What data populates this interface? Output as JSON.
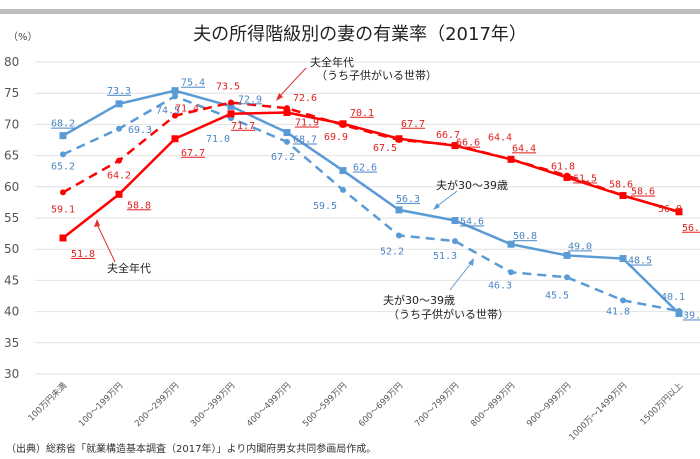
{
  "chart_data": {
    "type": "line",
    "title": "夫の所得階級別の妻の有業率（2017年）",
    "ylabel": "（%）",
    "source": "（出典）総務省「就業構造基本調査（2017年）」より内閣府男女共同参画局作成。",
    "ylim": [
      30,
      80
    ],
    "yticks": [
      30,
      35,
      40,
      45,
      50,
      55,
      60,
      65,
      70,
      75,
      80
    ],
    "grid": true,
    "categories": [
      "100万円未満",
      "100～199万円",
      "200～299万円",
      "300～399万円",
      "400～499万円",
      "500～599万円",
      "600～699万円",
      "700～799万円",
      "800～899万円",
      "900～999万円",
      "1000万～1499万円",
      "1500万円以上"
    ],
    "series": [
      {
        "name": "夫全年代",
        "color": "#ff0000",
        "style": "solid",
        "marker": "square",
        "values": [
          51.8,
          58.8,
          67.7,
          71.7,
          71.9,
          70.1,
          67.7,
          66.6,
          64.4,
          61.5,
          58.6,
          56.0
        ]
      },
      {
        "name": "夫全年代（うち子供がいる世帯）",
        "color": "#ff0000",
        "style": "dashed",
        "marker": "circle",
        "values": [
          59.1,
          64.2,
          71.4,
          73.5,
          72.6,
          69.9,
          67.5,
          66.7,
          64.4,
          61.8,
          58.6,
          56.0
        ]
      },
      {
        "name": "夫が30～39歳",
        "color": "#5b9bd5",
        "style": "solid",
        "marker": "square",
        "values": [
          68.2,
          73.3,
          75.4,
          72.9,
          68.7,
          62.6,
          56.3,
          54.6,
          50.8,
          49.0,
          48.5,
          39.7
        ]
      },
      {
        "name": "夫が30～39歳（うち子供がいる世帯）",
        "color": "#5b9bd5",
        "style": "dashed",
        "marker": "circle",
        "values": [
          65.2,
          69.3,
          74.5,
          71.0,
          67.2,
          59.5,
          52.2,
          51.3,
          46.3,
          45.5,
          41.8,
          40.1
        ]
      }
    ],
    "annotations": {
      "red_solid": "夫全年代",
      "red_dashed_1": "夫全年代",
      "red_dashed_2": "（うち子供がいる世帯）",
      "blue_solid": "夫が30～39歳",
      "blue_dashed_1": "夫が30～39歳",
      "blue_dashed_2": "（うち子供がいる世帯）"
    }
  }
}
